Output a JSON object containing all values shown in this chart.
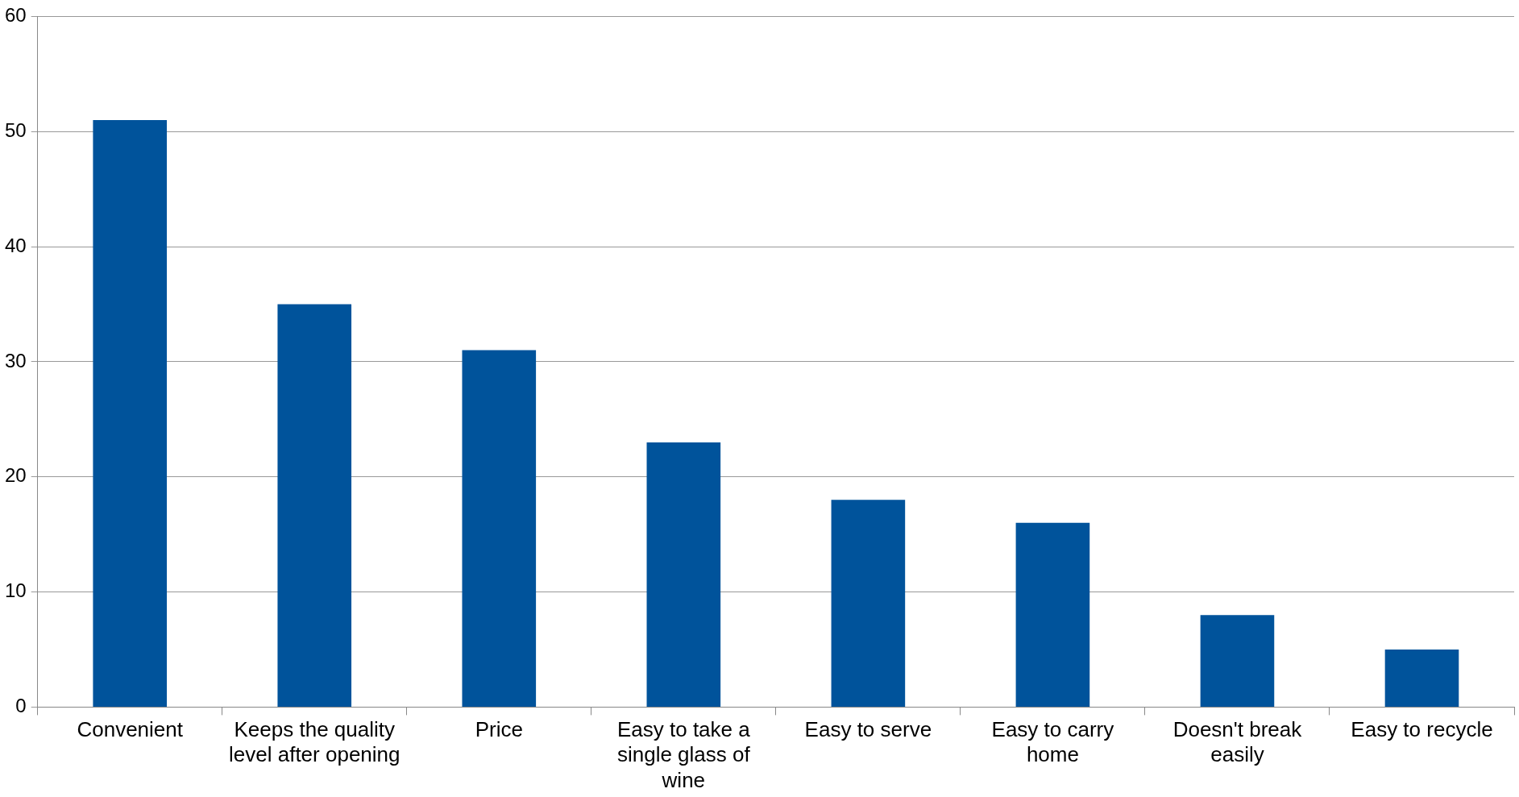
{
  "chart_data": {
    "type": "bar",
    "categories": [
      "Convenient",
      "Keeps the quality level after opening",
      "Price",
      "Easy to take a single glass of wine",
      "Easy to serve",
      "Easy to carry home",
      "Doesn't break easily",
      "Easy to recycle"
    ],
    "values": [
      51,
      35,
      31,
      23,
      18,
      16,
      8,
      5
    ],
    "color": "#00539b",
    "ylim": [
      0,
      60
    ],
    "yticks": [
      0,
      10,
      20,
      30,
      40,
      50,
      60
    ],
    "grid": "y",
    "legend": false
  }
}
